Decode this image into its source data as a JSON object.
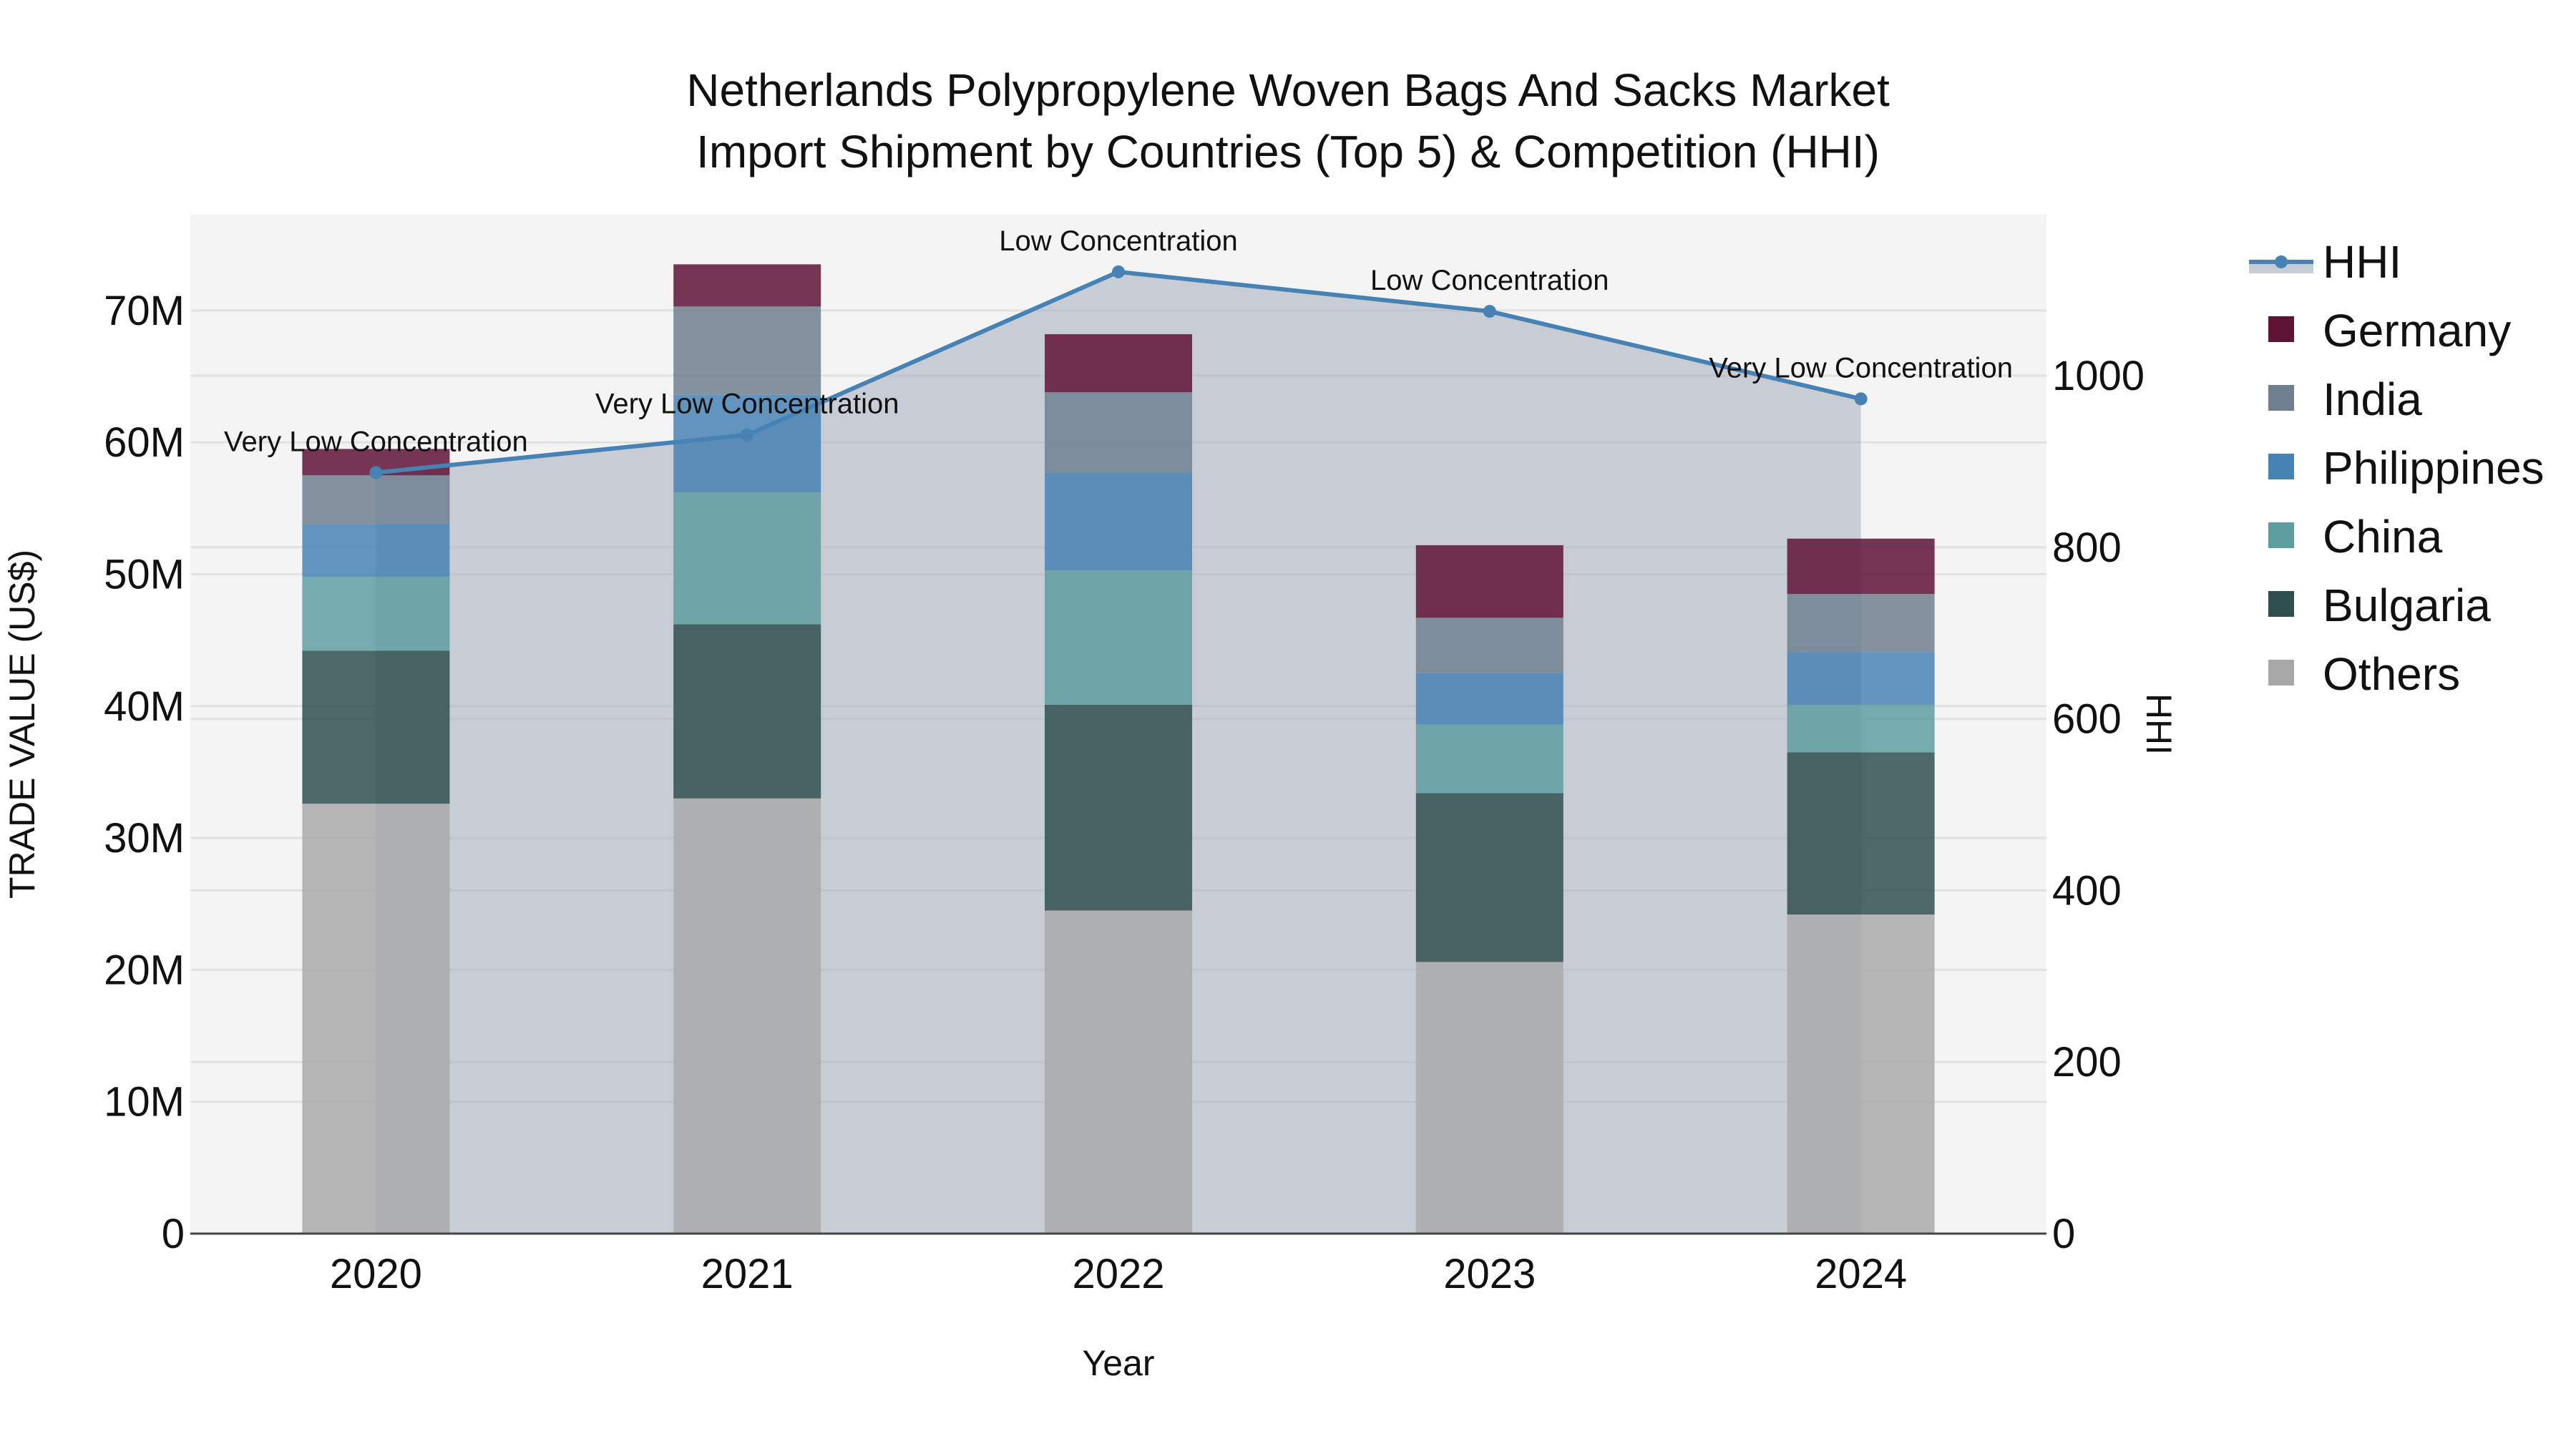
{
  "title": {
    "line1": "Netherlands Polypropylene Woven Bags And Sacks Market",
    "line2": "Import Shipment by Countries (Top 5) & Competition (HHI)"
  },
  "axes": {
    "x_title": "Year",
    "y_left_title": "TRADE VALUE (US$)",
    "y_right_title": "HHI",
    "y_left_ticks": [
      "0",
      "10M",
      "20M",
      "30M",
      "40M",
      "50M",
      "60M",
      "70M"
    ],
    "y_right_ticks": [
      "0",
      "200",
      "400",
      "600",
      "800",
      "1000"
    ],
    "x_ticks": [
      "2020",
      "2021",
      "2022",
      "2023",
      "2024"
    ]
  },
  "legend": {
    "items": [
      {
        "label": "HHI",
        "type": "line",
        "color": "#4682b4"
      },
      {
        "label": "Germany",
        "type": "bar",
        "color": "#5f1335"
      },
      {
        "label": "India",
        "type": "bar",
        "color": "#708090"
      },
      {
        "label": "Philippines",
        "type": "bar",
        "color": "#4682b4"
      },
      {
        "label": "China",
        "type": "bar",
        "color": "#5f9ea0"
      },
      {
        "label": "Bulgaria",
        "type": "bar",
        "color": "#2f4f4f"
      },
      {
        "label": "Others",
        "type": "bar",
        "color": "#a9a9a9"
      }
    ]
  },
  "colors": {
    "plot_bg": "#f4f4f4",
    "hhi_line": "#4682b4",
    "hhi_fill": "#c8cdd5",
    "grid": "#e2e2e2"
  },
  "chart_data": {
    "type": "bar",
    "title": "Netherlands Polypropylene Woven Bags And Sacks Market Import Shipment by Countries (Top 5) & Competition (HHI)",
    "xlabel": "Year",
    "ylabel": "TRADE VALUE (US$)",
    "y2label": "HHI",
    "ylim": [
      0,
      77000000
    ],
    "y2lim": [
      0,
      1185
    ],
    "barmode": "stack",
    "legend_position": "right",
    "grid": true,
    "categories": [
      "2020",
      "2021",
      "2022",
      "2023",
      "2024"
    ],
    "series": [
      {
        "name": "Others",
        "color": "#a9a9a9",
        "values": [
          32600000,
          33000000,
          24500000,
          20600000,
          24200000
        ]
      },
      {
        "name": "Bulgaria",
        "color": "#2f4f4f",
        "values": [
          11600000,
          13200000,
          15600000,
          12800000,
          12300000
        ]
      },
      {
        "name": "China",
        "color": "#5f9ea0",
        "values": [
          5600000,
          10000000,
          10200000,
          5200000,
          3600000
        ]
      },
      {
        "name": "Philippines",
        "color": "#4682b4",
        "values": [
          4000000,
          7400000,
          7400000,
          3900000,
          4000000
        ]
      },
      {
        "name": "India",
        "color": "#708090",
        "values": [
          3700000,
          6700000,
          6100000,
          4200000,
          4400000
        ]
      },
      {
        "name": "Germany",
        "color": "#5f1335",
        "values": [
          2000000,
          3200000,
          4400000,
          5500000,
          4200000
        ]
      }
    ],
    "line_series": {
      "name": "HHI",
      "axis": "right",
      "color": "#4682b4",
      "fill": "tozeroy",
      "values": [
        887,
        931,
        1121,
        1075,
        973
      ],
      "annotations": [
        "Very Low Concentration",
        "Very Low Concentration",
        "Low Concentration",
        "Low Concentration",
        "Very Low Concentration"
      ]
    }
  }
}
